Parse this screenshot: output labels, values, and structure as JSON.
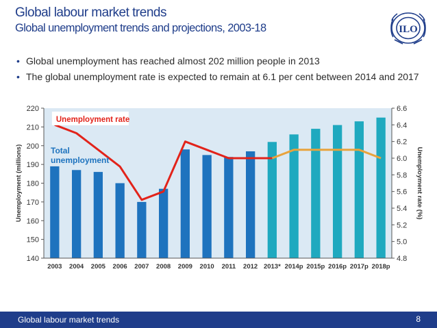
{
  "header": {
    "title": "Global labour market trends",
    "subtitle": "Global unemployment trends and projections, 2003-18",
    "logo_text": "ILO"
  },
  "bullets": [
    "Global unemployment has reached almost 202 million people in 2013",
    "The global unemployment rate is expected to remain at 6.1 per cent between 2014 and 2017"
  ],
  "footer": {
    "label": "Global labour market trends",
    "page": "8"
  },
  "colors": {
    "brand": "#1f3d8a",
    "bar_actual": "#1e73be",
    "bar_projection": "#1fa9bf",
    "line_actual": "#e2231a",
    "line_projection": "#e8a33c",
    "plot_bg": "#dbe9f4"
  },
  "chart_data": {
    "type": "bar",
    "categories": [
      "2003",
      "2004",
      "2005",
      "2006",
      "2007",
      "2008",
      "2009",
      "2010",
      "2011",
      "2012",
      "2013*",
      "2014p",
      "2015p",
      "2016p",
      "2017p",
      "2018p"
    ],
    "series": [
      {
        "name": "Total unemployment",
        "type": "bar",
        "axis": "left",
        "values": [
          189,
          187,
          186,
          180,
          170,
          177,
          198,
          195,
          194,
          197,
          202,
          206,
          209,
          211,
          213,
          215
        ]
      },
      {
        "name": "Unemployment rate",
        "type": "line",
        "axis": "right",
        "values": [
          6.4,
          6.3,
          6.1,
          5.9,
          5.5,
          5.6,
          6.2,
          6.1,
          6.0,
          6.0,
          6.0,
          6.1,
          6.1,
          6.1,
          6.1,
          6.0
        ]
      }
    ],
    "projection_start_index": 10,
    "ylabel": "Unemployment (millions)",
    "ylabel_right": "Unemployment rate (%)",
    "ylim": [
      140,
      220
    ],
    "yticks": [
      140,
      150,
      160,
      170,
      180,
      190,
      200,
      210,
      220
    ],
    "ylim_right": [
      4.8,
      6.6
    ],
    "yticks_right": [
      "4.8",
      "5.0",
      "5.2",
      "5.4",
      "5.6",
      "5.8",
      "6.0",
      "6.2",
      "6.4",
      "6.6"
    ],
    "grid": false,
    "legend": "inline"
  }
}
